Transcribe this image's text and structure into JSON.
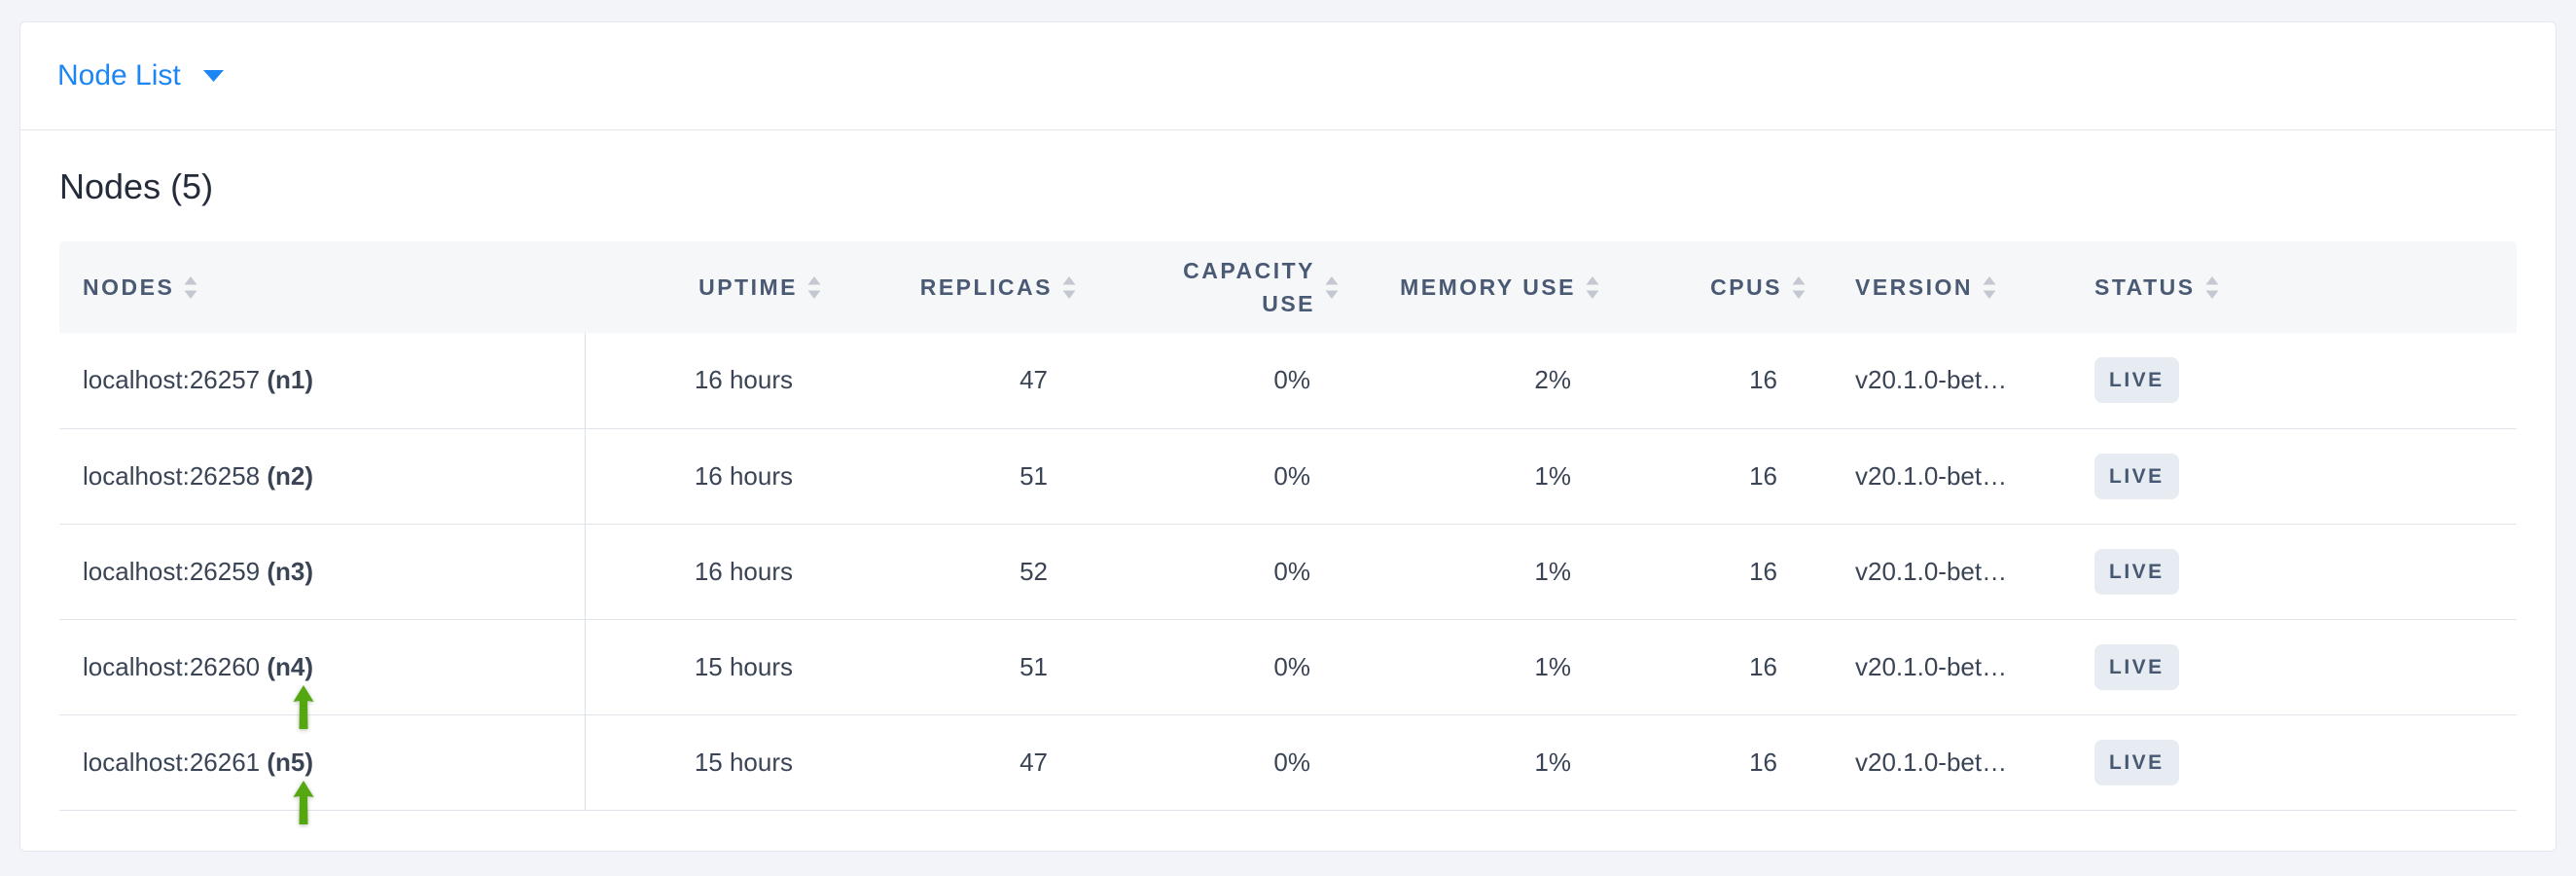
{
  "colors": {
    "accent_blue": "#1d86f2",
    "arrow_green": "#55a711",
    "badge_bg": "#e7ebf2",
    "header_text": "#4a5a74",
    "body_text": "#3a4455",
    "page_bg": "#f2f4f9"
  },
  "icons": {
    "caret_down": "caret-down-icon",
    "sort": "sort-arrows-icon",
    "annotation": "green-up-arrow-icon"
  },
  "toolbar": {
    "dropdown_label": "Node List"
  },
  "main": {
    "title": "Nodes (5)",
    "table": {
      "columns": [
        {
          "key": "nodes",
          "label": "NODES",
          "align": "left",
          "sortable": true
        },
        {
          "key": "uptime",
          "label": "UPTIME",
          "align": "right",
          "sortable": true
        },
        {
          "key": "replicas",
          "label": "REPLICAS",
          "align": "right",
          "sortable": true
        },
        {
          "key": "capacity_use",
          "label": "CAPACITY USE",
          "align": "right",
          "sortable": true
        },
        {
          "key": "memory_use",
          "label": "MEMORY USE",
          "align": "right",
          "sortable": true
        },
        {
          "key": "cpus",
          "label": "CPUS",
          "align": "right",
          "sortable": true
        },
        {
          "key": "version",
          "label": "VERSION",
          "align": "left",
          "sortable": true
        },
        {
          "key": "status",
          "label": "STATUS",
          "align": "left",
          "sortable": true
        }
      ],
      "rows": [
        {
          "address": "localhost:26257",
          "name": "(n1)",
          "uptime": "16 hours",
          "replicas": "47",
          "capacity_use": "0%",
          "memory_use": "2%",
          "cpus": "16",
          "version": "v20.1.0-bet…",
          "status": "LIVE",
          "annotated": false
        },
        {
          "address": "localhost:26258",
          "name": "(n2)",
          "uptime": "16 hours",
          "replicas": "51",
          "capacity_use": "0%",
          "memory_use": "1%",
          "cpus": "16",
          "version": "v20.1.0-bet…",
          "status": "LIVE",
          "annotated": false
        },
        {
          "address": "localhost:26259",
          "name": "(n3)",
          "uptime": "16 hours",
          "replicas": "52",
          "capacity_use": "0%",
          "memory_use": "1%",
          "cpus": "16",
          "version": "v20.1.0-bet…",
          "status": "LIVE",
          "annotated": false
        },
        {
          "address": "localhost:26260",
          "name": "(n4)",
          "uptime": "15 hours",
          "replicas": "51",
          "capacity_use": "0%",
          "memory_use": "1%",
          "cpus": "16",
          "version": "v20.1.0-bet…",
          "status": "LIVE",
          "annotated": true
        },
        {
          "address": "localhost:26261",
          "name": "(n5)",
          "uptime": "15 hours",
          "replicas": "47",
          "capacity_use": "0%",
          "memory_use": "1%",
          "cpus": "16",
          "version": "v20.1.0-bet…",
          "status": "LIVE",
          "annotated": true
        }
      ]
    }
  },
  "annotations": {
    "arrows": [
      {
        "target": "(n4)"
      },
      {
        "target": "(n5)"
      }
    ]
  }
}
